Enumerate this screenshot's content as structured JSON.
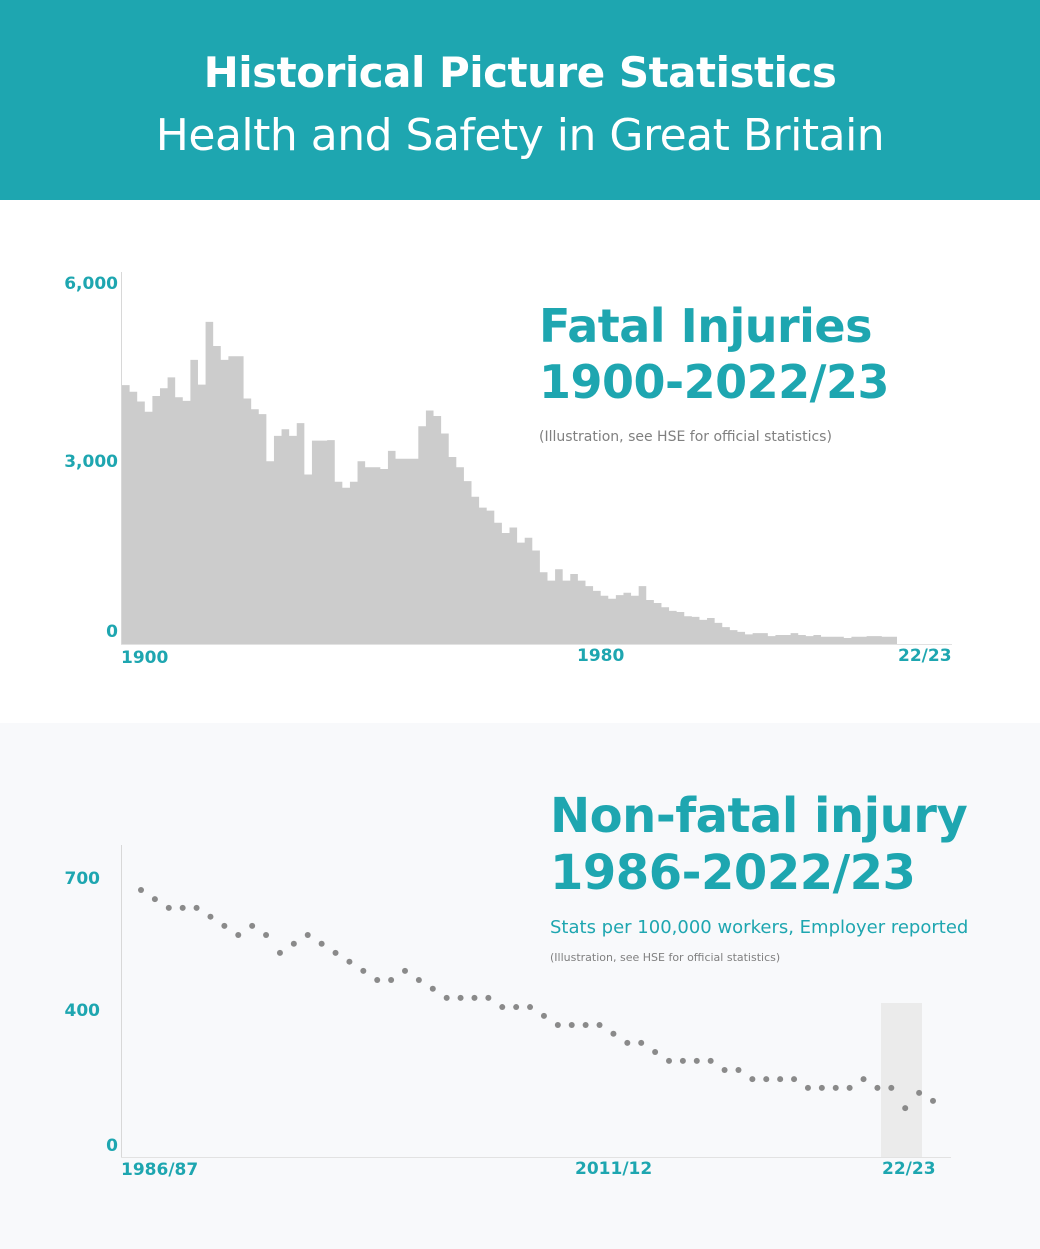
{
  "header": {
    "title": "Historical Picture Statistics",
    "subtitle": "Health and Safety in Great Britain"
  },
  "fatal": {
    "title_line1": "Fatal Injuries",
    "title_line2": "1900-2022/23",
    "note": "(Illustration, see HSE for official statistics)",
    "y_ticks": [
      "6,000",
      "3,000",
      "0"
    ],
    "x_ticks": [
      "1900",
      "1980",
      "22/23"
    ]
  },
  "nonfatal": {
    "title_line1": "Non-fatal injury",
    "title_line2": "1986-2022/23",
    "subtitle": "Stats per 100,000 workers, Employer reported",
    "note": "(Illustration, see HSE for official statistics)",
    "y_ticks": [
      "700",
      "400",
      "0"
    ],
    "x_ticks": [
      "1986/87",
      "2011/12",
      "22/23"
    ]
  },
  "colors": {
    "accent": "#1ea6b0",
    "bar": "#cccccc",
    "dot": "#8a8a8a",
    "highlight": "#ebebeb"
  },
  "chart_data": [
    {
      "type": "bar",
      "title": "Fatal Injuries 1900-2022/23",
      "subtitle": "(Illustration, see HSE for official statistics)",
      "xlabel": "",
      "ylabel": "",
      "x_range": [
        "1900",
        "2022/23"
      ],
      "x_tick_labels": [
        "1900",
        "1980",
        "22/23"
      ],
      "y_tick_labels": [
        "0",
        "3,000",
        "6,000"
      ],
      "ylim": [
        0,
        6000
      ],
      "grid": false,
      "values": [
        4290,
        4180,
        4020,
        3850,
        4110,
        4240,
        4420,
        4090,
        4030,
        4710,
        4300,
        5340,
        4940,
        4710,
        4770,
        4770,
        4070,
        3890,
        3810,
        3030,
        3450,
        3560,
        3450,
        3660,
        2810,
        3370,
        3370,
        3380,
        2690,
        2590,
        2690,
        3030,
        2930,
        2930,
        2900,
        3200,
        3070,
        3070,
        3070,
        3610,
        3870,
        3780,
        3490,
        3100,
        2930,
        2700,
        2440,
        2260,
        2210,
        2010,
        1840,
        1930,
        1680,
        1760,
        1550,
        1190,
        1050,
        1240,
        1050,
        1160,
        1050,
        960,
        880,
        800,
        750,
        810,
        850,
        800,
        960,
        730,
        680,
        610,
        550,
        530,
        460,
        450,
        400,
        430,
        350,
        280,
        230,
        200,
        160,
        180,
        180,
        130,
        150,
        150,
        180,
        150,
        130,
        150,
        120,
        120,
        120,
        100,
        120,
        120,
        130,
        130,
        120,
        120
      ]
    },
    {
      "type": "scatter",
      "title": "Non-fatal injury 1986-2022/23",
      "subtitle": "Stats per 100,000 workers, Employer reported",
      "note": "(Illustration, see HSE for official statistics)",
      "x_range": [
        "1986/87",
        "2022/23"
      ],
      "x_tick_labels": [
        "1986/87",
        "2011/12",
        "22/23"
      ],
      "y_tick_labels": [
        "0",
        "400",
        "700"
      ],
      "ylim": [
        0,
        750
      ],
      "grid": false,
      "highlight_region": "final years near 22/23 (shaded)",
      "values": [
        674,
        650,
        627,
        627,
        627,
        604,
        580,
        556,
        580,
        556,
        509,
        533,
        556,
        533,
        509,
        486,
        462,
        438,
        438,
        462,
        438,
        415,
        391,
        391,
        391,
        391,
        367,
        367,
        367,
        344,
        320,
        320,
        320,
        320,
        297,
        273,
        273,
        249,
        226,
        226,
        226,
        226,
        202,
        202,
        178,
        178,
        178,
        178,
        155,
        155,
        155,
        155,
        178,
        155,
        155,
        102,
        142,
        121
      ]
    }
  ]
}
